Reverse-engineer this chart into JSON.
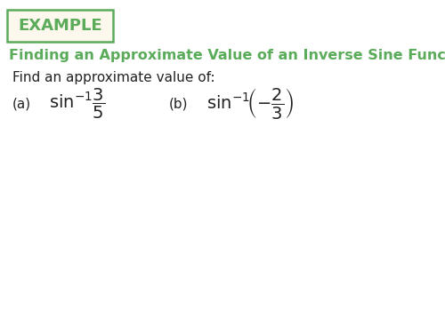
{
  "background_color": "#ffffff",
  "example_box_text": "EXAMPLE",
  "example_box_color": "#5aab5a",
  "example_box_bg": "#fdf8ee",
  "title_text": "Finding an Approximate Value of an Inverse Sine Function",
  "title_color": "#5aab5a",
  "title_fontsize": 11.5,
  "subtitle_text": "Find an approximate value of:",
  "subtitle_color": "#222222",
  "subtitle_fontsize": 11,
  "part_a_label": "(a)",
  "part_b_label": "(b)",
  "part_label_color": "#222222",
  "part_label_fontsize": 11,
  "math_color": "#222222",
  "math_fontsize": 14,
  "fig_width": 5.0,
  "fig_height": 3.75,
  "dpi": 100
}
